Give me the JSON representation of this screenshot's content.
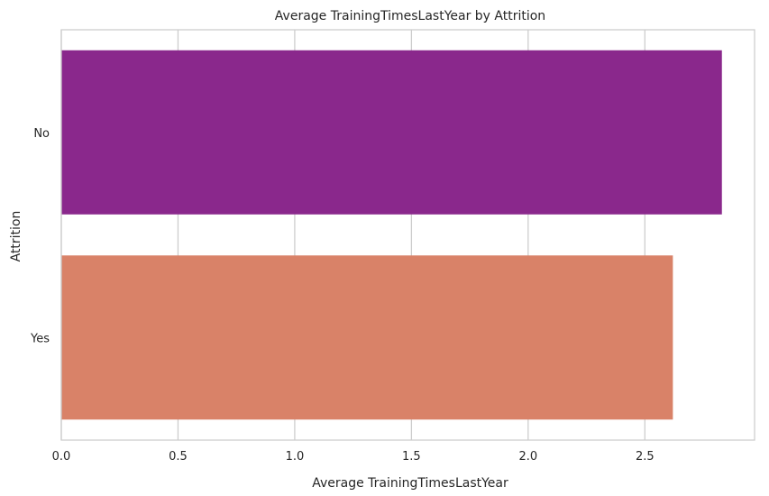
{
  "chart_data": {
    "type": "bar",
    "orientation": "horizontal",
    "title": "Average TrainingTimesLastYear by Attrition",
    "xlabel": "Average TrainingTimesLastYear",
    "ylabel": "Attrition",
    "categories": [
      "No",
      "Yes"
    ],
    "values": [
      2.83,
      2.62
    ],
    "colors": [
      "#8a288c",
      "#d98268"
    ],
    "xlim": [
      0,
      2.97
    ],
    "xticks": [
      "0.0",
      "0.5",
      "1.0",
      "1.5",
      "2.0",
      "2.5"
    ],
    "xtick_values": [
      0,
      0.5,
      1.0,
      1.5,
      2.0,
      2.5
    ],
    "grid": true,
    "grid_color": "#cccccc"
  }
}
